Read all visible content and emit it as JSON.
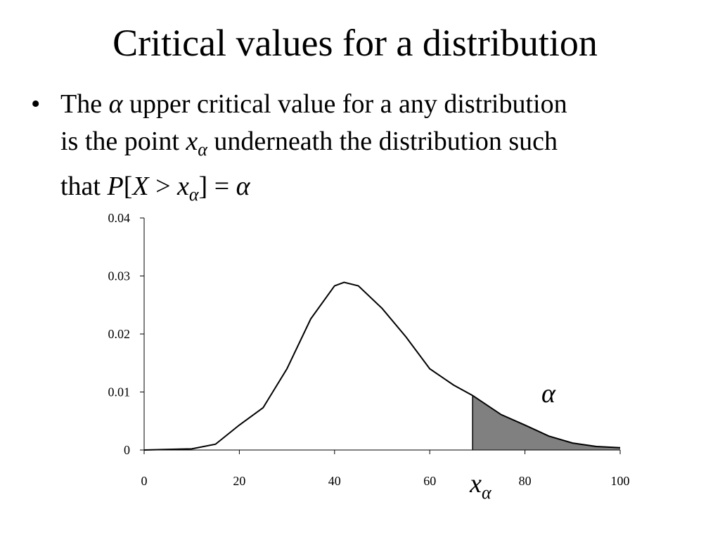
{
  "title": "Critical values for a distribution",
  "bullet": {
    "lines": [
      [
        "The ",
        "α",
        " upper critical value for a any distribution"
      ],
      [
        "is the point ",
        "x",
        "α",
        " underneath the distribution such"
      ],
      [
        "that ",
        "P",
        "[",
        "X",
        " > ",
        "x",
        "α",
        "] = ",
        "α"
      ]
    ]
  },
  "chart_data": {
    "type": "line",
    "x": [
      0,
      5,
      10,
      15,
      20,
      25,
      30,
      35,
      40,
      42,
      45,
      50,
      55,
      60,
      65,
      69,
      75,
      80,
      85,
      90,
      95,
      100
    ],
    "values": [
      0,
      0.0001,
      0.0002,
      0.001,
      0.0043,
      0.0073,
      0.014,
      0.0226,
      0.0283,
      0.0289,
      0.0283,
      0.0244,
      0.0195,
      0.014,
      0.0112,
      0.0094,
      0.0061,
      0.0043,
      0.0024,
      0.0012,
      0.0006,
      0.0004
    ],
    "color": "#000000",
    "shade_color": "#808080",
    "critical_x": 69,
    "shade_label": "α",
    "critical_label": {
      "base": "x",
      "sub": "α"
    },
    "xlim": [
      0,
      100
    ],
    "xticks": [
      0,
      20,
      40,
      60,
      80,
      100
    ],
    "ylim": [
      0,
      0.04
    ],
    "yticks": [
      0,
      0.01,
      0.02,
      0.03,
      0.04
    ]
  }
}
